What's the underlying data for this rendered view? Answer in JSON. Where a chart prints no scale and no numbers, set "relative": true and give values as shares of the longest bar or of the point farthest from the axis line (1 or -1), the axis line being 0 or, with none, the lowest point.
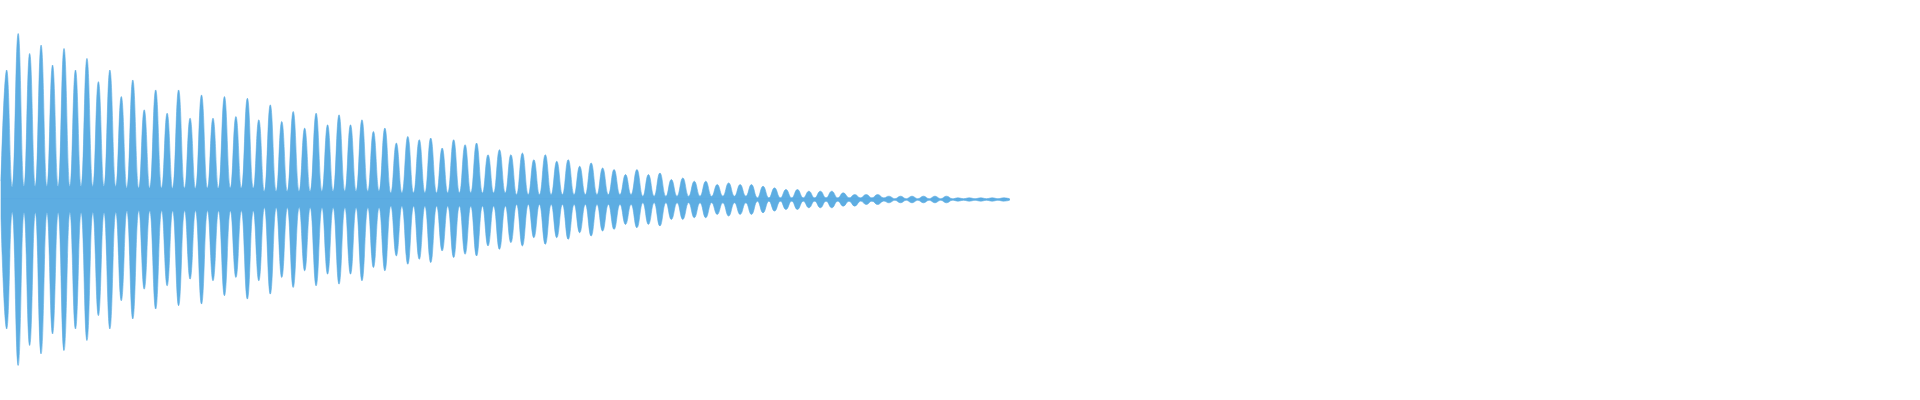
{
  "chart_data": {
    "type": "area",
    "relative": true,
    "categories": [
      null,
      null,
      null,
      null,
      null,
      null,
      null,
      null,
      null,
      null,
      null,
      null,
      null,
      null,
      null,
      null,
      null,
      null,
      null,
      null,
      null,
      null,
      null,
      null,
      null,
      null,
      null,
      null,
      null,
      null,
      null,
      null,
      null,
      null,
      null,
      null,
      null,
      null,
      null,
      null,
      null,
      null,
      null,
      null,
      null,
      null,
      null,
      null,
      null,
      null,
      null,
      null,
      null,
      null,
      null,
      null,
      null,
      null,
      null,
      null,
      null,
      null,
      null,
      null,
      null,
      null,
      null,
      null,
      null,
      null,
      null,
      null,
      null,
      null,
      null,
      null,
      null,
      null,
      null,
      null,
      null,
      null,
      null,
      null,
      null,
      null,
      null,
      null,
      null,
      null,
      null,
      null,
      null,
      null,
      null,
      null,
      null,
      null,
      null,
      null,
      null,
      null,
      null,
      null,
      null,
      null,
      null,
      null,
      null,
      null,
      null,
      null,
      null,
      null,
      null,
      null,
      null,
      null,
      null,
      null,
      null,
      null,
      null,
      null,
      null,
      null,
      null,
      null,
      null,
      null,
      null,
      null,
      null,
      null,
      null,
      null,
      null,
      null,
      null,
      null,
      null,
      null,
      null,
      null,
      null,
      null,
      null,
      null,
      null,
      null,
      null,
      null,
      null,
      null,
      null,
      null,
      null,
      null,
      null,
      null,
      null,
      null,
      null,
      null,
      null,
      null,
      null,
      null,
      null,
      null,
      null,
      null,
      null,
      null,
      null,
      null,
      null
    ],
    "ref_lines": [
      {
        "axis": "y",
        "value": 0,
        "color": "#5dade2"
      }
    ],
    "series": [
      {
        "color": "#5dade2",
        "values": [
          0.11,
          0.78,
          0.08,
          1,
          0.08,
          0.88,
          0.08,
          0.93,
          0.08,
          0.81,
          0.08,
          0.91,
          0.08,
          0.78,
          0.08,
          0.85,
          0.08,
          0.71,
          0.08,
          0.78,
          0.08,
          0.62,
          0.07,
          0.72,
          0.07,
          0.54,
          0.07,
          0.66,
          0.07,
          0.52,
          0.07,
          0.66,
          0.07,
          0.49,
          0.07,
          0.63,
          0.07,
          0.49,
          0.07,
          0.62,
          0.07,
          0.5,
          0.07,
          0.61,
          0.07,
          0.48,
          0.05,
          0.57,
          0.05,
          0.47,
          0.05,
          0.53,
          0.05,
          0.43,
          0.05,
          0.52,
          0.05,
          0.45,
          0.05,
          0.51,
          0.05,
          0.45,
          0.05,
          0.48,
          0.05,
          0.41,
          0.05,
          0.43,
          0.04,
          0.34,
          0.04,
          0.38,
          0.04,
          0.36,
          0.04,
          0.37,
          0.04,
          0.31,
          0.04,
          0.36,
          0.04,
          0.33,
          0.04,
          0.34,
          0.04,
          0.27,
          0.04,
          0.3,
          0.04,
          0.27,
          0.03,
          0.28,
          0.03,
          0.24,
          0.03,
          0.27,
          0.03,
          0.23,
          0.03,
          0.24,
          0.03,
          0.2,
          0.03,
          0.22,
          0.03,
          0.19,
          0.03,
          0.18,
          0.03,
          0.15,
          0.03,
          0.18,
          0.02,
          0.15,
          0.02,
          0.16,
          0.02,
          0.12,
          0.02,
          0.13,
          0.02,
          0.11,
          0.02,
          0.11,
          0.02,
          0.09,
          0.02,
          0.1,
          0.02,
          0.09,
          0.02,
          0.09,
          0.01,
          0.08,
          0.01,
          0.07,
          0.01,
          0.06,
          0.01,
          0.06,
          0.01,
          0.05,
          0.01,
          0.05,
          0.01,
          0.05,
          0.01,
          0.04,
          0.01,
          0.03,
          0.01,
          0.03,
          0.01,
          0.03,
          0.01,
          0.02,
          0.005,
          0.02,
          0.005,
          0.02,
          0.005,
          0.02,
          0.005,
          0.02,
          0.005,
          0.02,
          0.005,
          0.01,
          0.005,
          0.01,
          0.005,
          0.01,
          0.005,
          0.01,
          0.005,
          0.01,
          0.005
        ]
      },
      {
        "color": "#5dade2",
        "values": [
          -0.11,
          -0.78,
          -0.08,
          -1,
          -0.08,
          -0.88,
          -0.08,
          -0.93,
          -0.08,
          -0.81,
          -0.08,
          -0.91,
          -0.08,
          -0.78,
          -0.08,
          -0.85,
          -0.08,
          -0.7,
          -0.08,
          -0.78,
          -0.08,
          -0.61,
          -0.07,
          -0.72,
          -0.07,
          -0.54,
          -0.07,
          -0.66,
          -0.07,
          -0.52,
          -0.07,
          -0.64,
          -0.07,
          -0.48,
          -0.07,
          -0.63,
          -0.07,
          -0.49,
          -0.07,
          -0.58,
          -0.07,
          -0.47,
          -0.07,
          -0.6,
          -0.07,
          -0.49,
          -0.05,
          -0.57,
          -0.05,
          -0.47,
          -0.05,
          -0.53,
          -0.05,
          -0.43,
          -0.05,
          -0.52,
          -0.05,
          -0.45,
          -0.05,
          -0.51,
          -0.05,
          -0.45,
          -0.05,
          -0.49,
          -0.05,
          -0.41,
          -0.05,
          -0.43,
          -0.04,
          -0.34,
          -0.04,
          -0.39,
          -0.04,
          -0.36,
          -0.04,
          -0.38,
          -0.04,
          -0.31,
          -0.04,
          -0.35,
          -0.04,
          -0.33,
          -0.04,
          -0.34,
          -0.04,
          -0.28,
          -0.04,
          -0.3,
          -0.04,
          -0.26,
          -0.03,
          -0.28,
          -0.03,
          -0.23,
          -0.03,
          -0.27,
          -0.03,
          -0.23,
          -0.03,
          -0.24,
          -0.03,
          -0.2,
          -0.03,
          -0.22,
          -0.03,
          -0.19,
          -0.03,
          -0.18,
          -0.03,
          -0.15,
          -0.03,
          -0.17,
          -0.02,
          -0.15,
          -0.02,
          -0.16,
          -0.02,
          -0.12,
          -0.02,
          -0.12,
          -0.02,
          -0.11,
          -0.02,
          -0.11,
          -0.02,
          -0.09,
          -0.02,
          -0.1,
          -0.02,
          -0.09,
          -0.02,
          -0.09,
          -0.01,
          -0.08,
          -0.01,
          -0.07,
          -0.01,
          -0.06,
          -0.01,
          -0.06,
          -0.01,
          -0.05,
          -0.01,
          -0.05,
          -0.01,
          -0.05,
          -0.01,
          -0.04,
          -0.01,
          -0.04,
          -0.01,
          -0.03,
          -0.01,
          -0.03,
          -0.01,
          -0.02,
          -0.005,
          -0.02,
          -0.005,
          -0.02,
          -0.005,
          -0.02,
          -0.005,
          -0.02,
          -0.005,
          -0.02,
          -0.005,
          -0.01,
          -0.005,
          -0.01,
          -0.005,
          -0.01,
          -0.005,
          -0.01,
          -0.005,
          -0.01,
          -0.005
        ]
      }
    ]
  }
}
